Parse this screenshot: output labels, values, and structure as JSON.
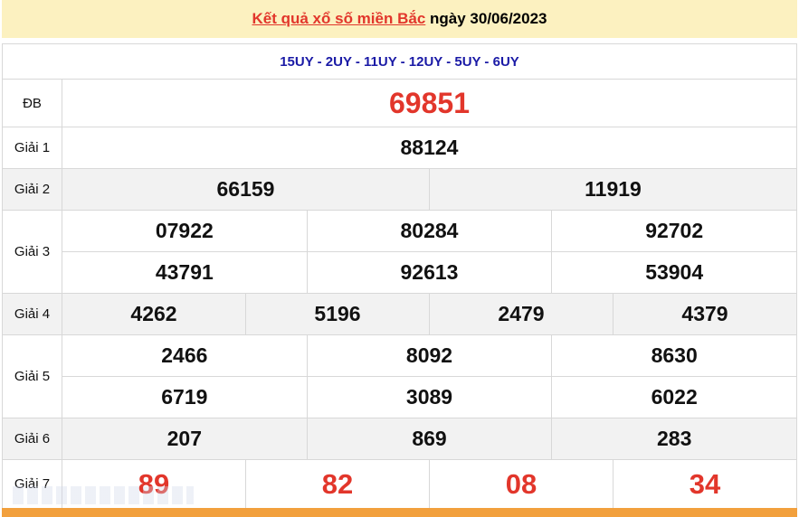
{
  "header": {
    "title_link": "Kết quả xổ số miền Bắc",
    "title_rest": " ngày 30/06/2023"
  },
  "codes": "15UY - 2UY - 11UY - 12UY - 5UY - 6UY",
  "prizes": [
    {
      "label": "ĐB",
      "rows": [
        [
          "69851"
        ]
      ],
      "red": true
    },
    {
      "label": "Giải 1",
      "rows": [
        [
          "88124"
        ]
      ]
    },
    {
      "label": "Giải 2",
      "rows": [
        [
          "66159",
          "11919"
        ]
      ]
    },
    {
      "label": "Giải 3",
      "rows": [
        [
          "07922",
          "80284",
          "92702"
        ],
        [
          "43791",
          "92613",
          "53904"
        ]
      ]
    },
    {
      "label": "Giải 4",
      "rows": [
        [
          "4262",
          "5196",
          "2479",
          "4379"
        ]
      ]
    },
    {
      "label": "Giải 5",
      "rows": [
        [
          "2466",
          "8092",
          "8630"
        ],
        [
          "6719",
          "3089",
          "6022"
        ]
      ]
    },
    {
      "label": "Giải 6",
      "rows": [
        [
          "207",
          "869",
          "283"
        ]
      ]
    },
    {
      "label": "Giải 7",
      "rows": [
        [
          "89",
          "82",
          "08",
          "34"
        ]
      ],
      "red": true
    }
  ],
  "watermark": "BAOQUOCTE.VN",
  "colors": {
    "accent_red": "#e2362b",
    "code_blue": "#1a1aa6",
    "header_bg": "#fcf1c0",
    "footer_bar": "#f2a03d"
  }
}
